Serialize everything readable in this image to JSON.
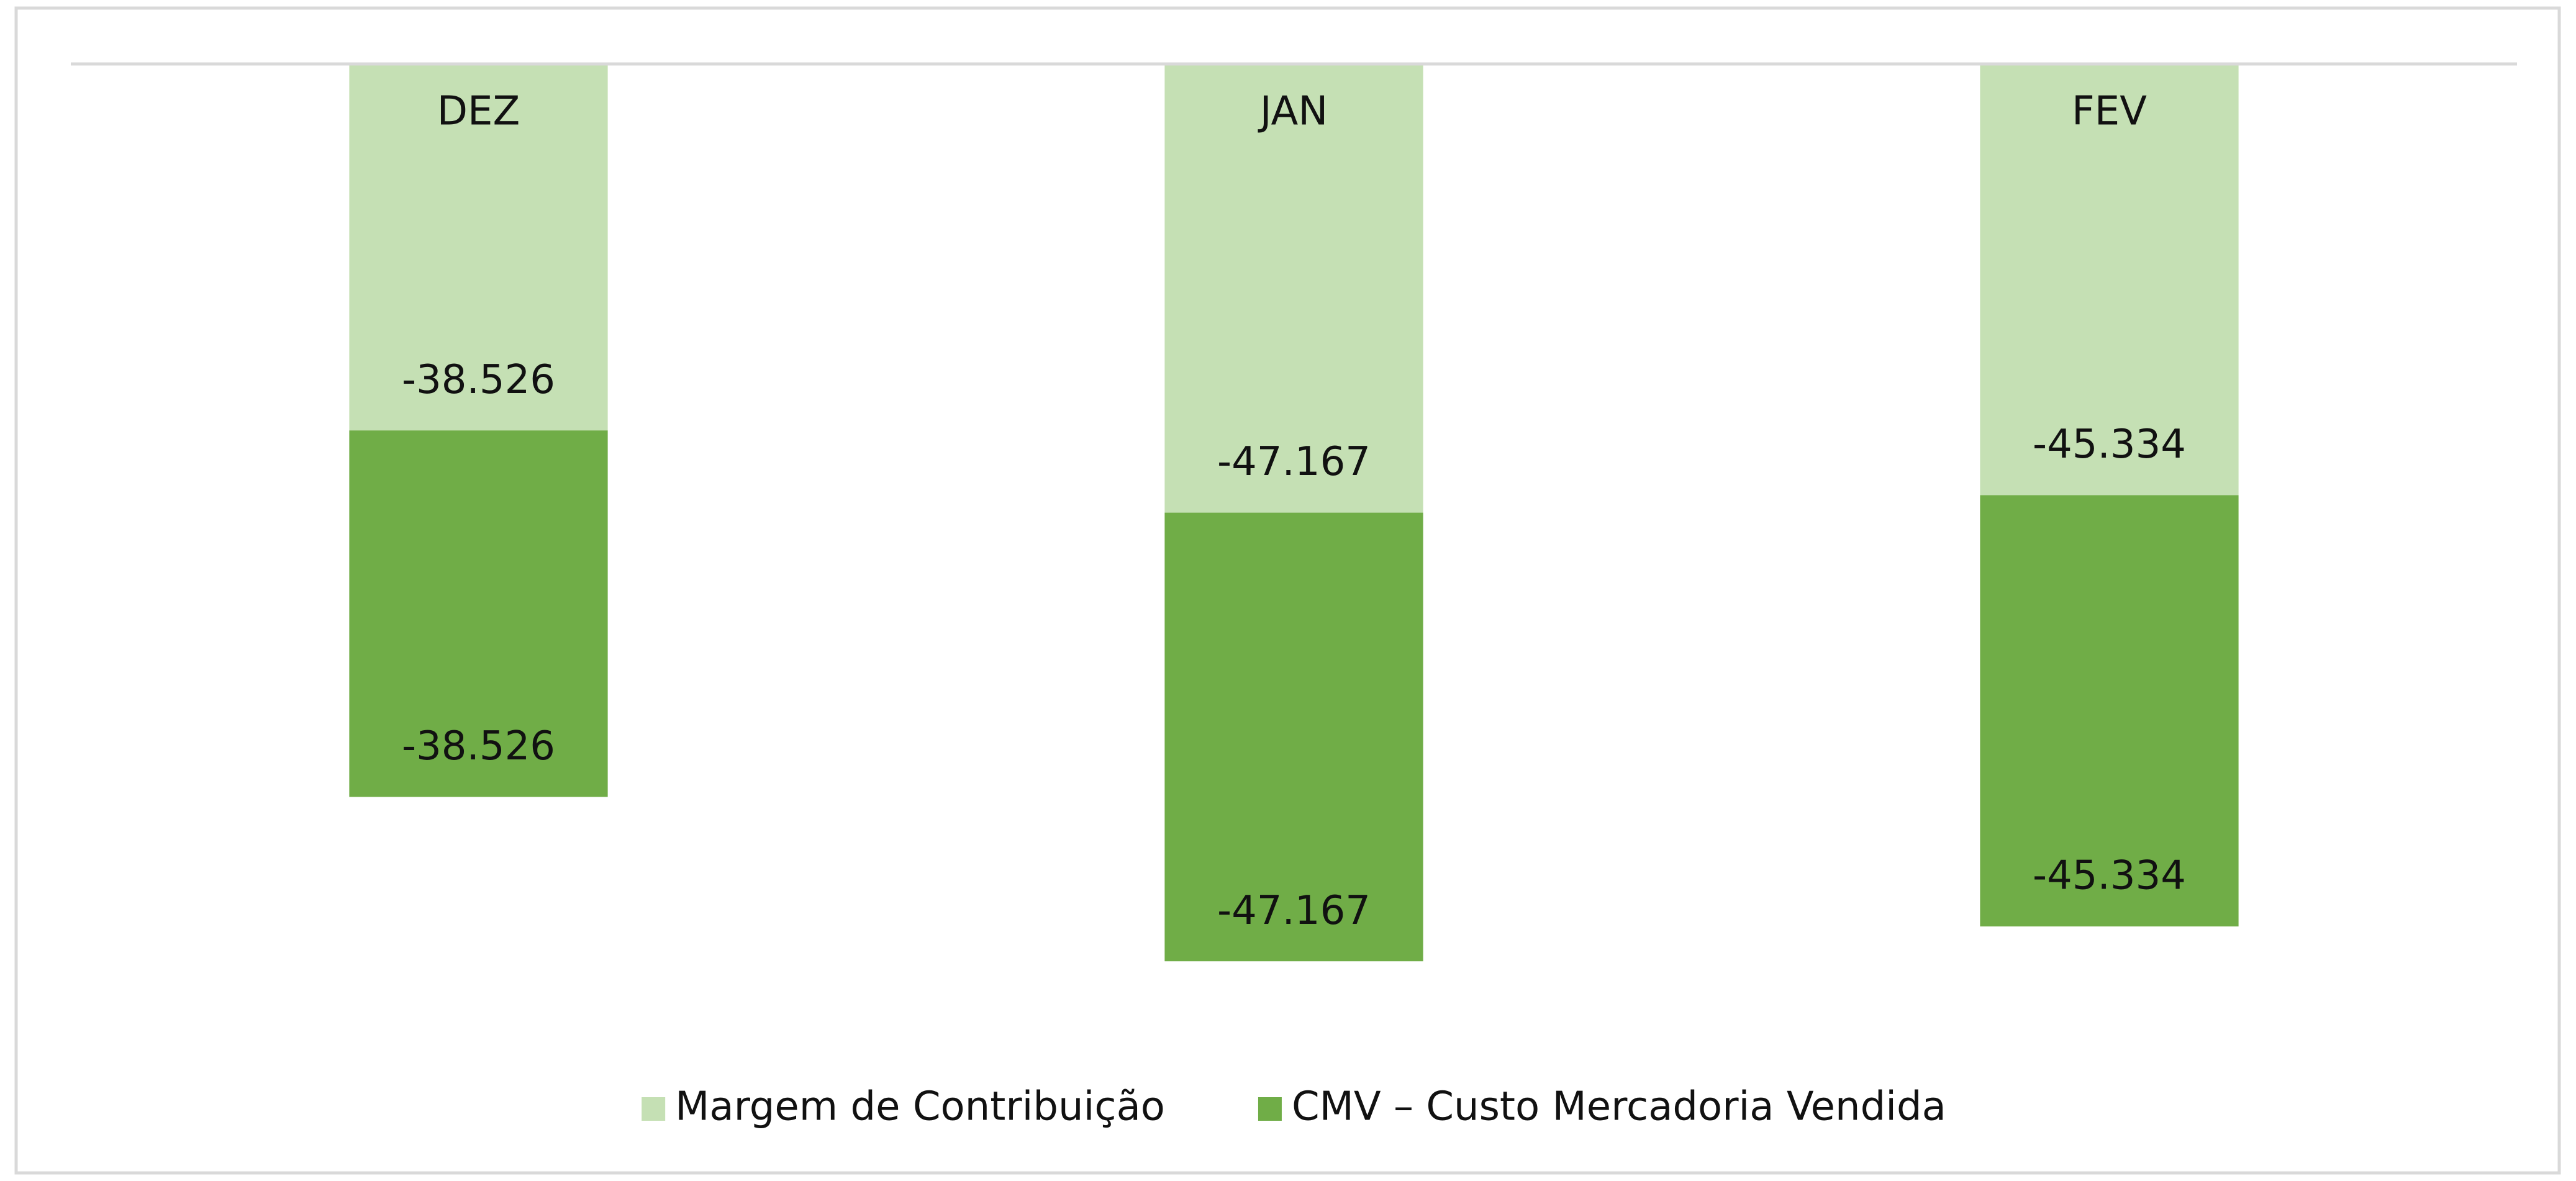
{
  "chart_data": {
    "type": "stacked_bar",
    "categories": [
      "DEZ",
      "JAN",
      "FEV"
    ],
    "series": [
      {
        "name": "Margem de Contribuição",
        "color": "#c5e0b4",
        "values": [
          -38526,
          -47167,
          -45334
        ],
        "value_labels": [
          "-38.526",
          "-47.167",
          "-45.334"
        ]
      },
      {
        "name": "CMV – Custo Mercadoria Vendida",
        "color": "#70ad47",
        "values": [
          -38526,
          -47167,
          -45334
        ],
        "value_labels": [
          "-38.526",
          "-47.167",
          "-45.334"
        ]
      }
    ],
    "ylim": [
      -100000,
      0
    ],
    "legend": "bottom"
  }
}
